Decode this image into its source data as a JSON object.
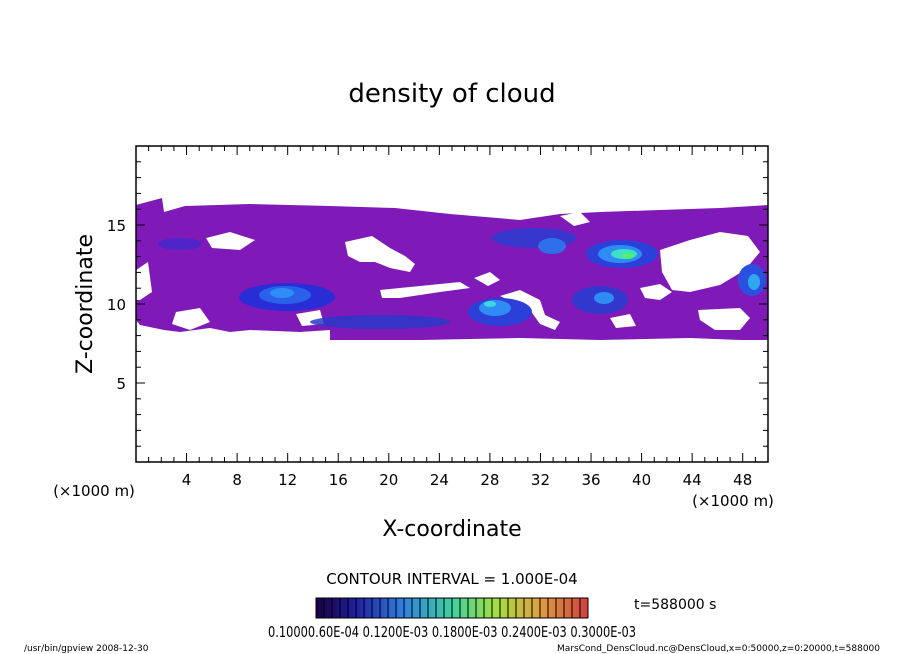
{
  "chart_data": {
    "type": "heatmap",
    "title": "density of cloud",
    "xlabel": "X-coordinate",
    "ylabel": "Z-coordinate",
    "x_unit": "(×1000 m)",
    "z_unit": "(×1000 m)",
    "xlim": [
      0,
      50
    ],
    "ylim": [
      0,
      20
    ],
    "x_ticks": [
      4,
      8,
      12,
      16,
      20,
      24,
      28,
      32,
      36,
      40,
      44,
      48
    ],
    "y_ticks": [
      5,
      10,
      15
    ],
    "contour_interval": "CONTOUR INTERVAL = 1.000E-04",
    "time_label": "t=588000 s",
    "colorbar_labels": [
      "0.1000",
      "0.6000E-04",
      "0.1200E-03",
      "0.1800E-03",
      "0.2400E-03",
      "0.3000E-03"
    ],
    "colorbar_text": "0.10000.60E-04 0.1200E-03 0.1800E-03 0.2400E-03 0.3000E-03",
    "colors": {
      "base": "#7f1ab8",
      "low": "#2030d8",
      "mid": "#2090f0",
      "high": "#30e8c0",
      "peak": "#40f070"
    },
    "cloud_layer": {
      "z_bottom": 7.8,
      "z_top": 16.4
    },
    "high_density_regions": [
      {
        "x": 11.5,
        "z": 10.5,
        "level": "mid"
      },
      {
        "x": 19.0,
        "z": 9.2,
        "level": "low"
      },
      {
        "x": 28.0,
        "z": 9.6,
        "level": "mid"
      },
      {
        "x": 31.0,
        "z": 13.8,
        "level": "low"
      },
      {
        "x": 38.0,
        "z": 13.2,
        "level": "peak"
      },
      {
        "x": 37.0,
        "z": 10.2,
        "level": "mid"
      },
      {
        "x": 49.0,
        "z": 11.5,
        "level": "mid"
      }
    ]
  },
  "footer": {
    "left": "/usr/bin/gpview  2008-12-30",
    "right": "MarsCond_DensCloud.nc@DensCloud,x=0:50000,z=0:20000,t=588000"
  }
}
